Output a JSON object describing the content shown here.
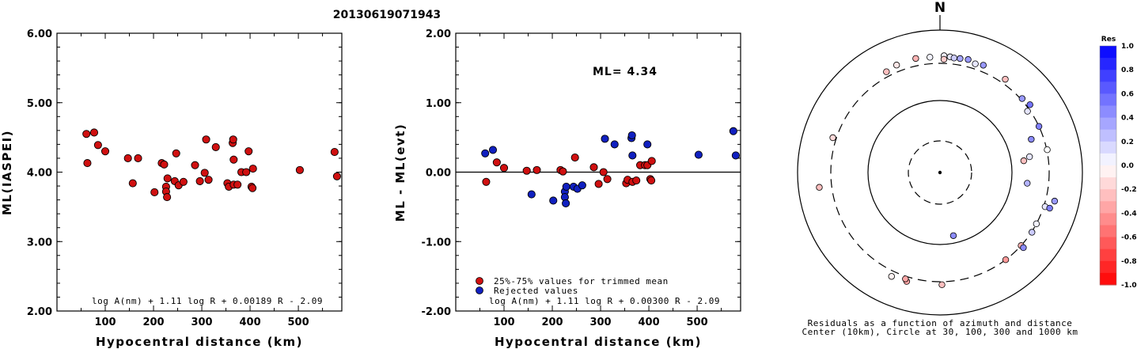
{
  "title": "20130619071943",
  "chart_data": [
    {
      "type": "scatter",
      "ylabel": "ML(IASPEI)",
      "xlabel": "Hypocentral distance (km)",
      "xlim": [
        0,
        590
      ],
      "ylim": [
        2.0,
        6.0
      ],
      "xticks": [
        100,
        200,
        300,
        400,
        500
      ],
      "yticks": [
        "2.00",
        "3.00",
        "4.00",
        "5.00",
        "6.00"
      ],
      "formula": "log A(nm) + 1.11 log R + 0.00189 R - 2.09",
      "marker_color": "#d01010",
      "points": [
        [
          61,
          4.55
        ],
        [
          63,
          4.13
        ],
        [
          77,
          4.57
        ],
        [
          85,
          4.39
        ],
        [
          100,
          4.3
        ],
        [
          147,
          4.2
        ],
        [
          157,
          3.84
        ],
        [
          168,
          4.2
        ],
        [
          202,
          3.71
        ],
        [
          217,
          4.13
        ],
        [
          222,
          4.11
        ],
        [
          226,
          3.79
        ],
        [
          226,
          3.72
        ],
        [
          228,
          3.64
        ],
        [
          229,
          3.91
        ],
        [
          244,
          3.87
        ],
        [
          247,
          4.27
        ],
        [
          252,
          3.81
        ],
        [
          262,
          3.86
        ],
        [
          286,
          4.1
        ],
        [
          296,
          3.87
        ],
        [
          306,
          3.99
        ],
        [
          309,
          4.47
        ],
        [
          314,
          3.89
        ],
        [
          329,
          4.36
        ],
        [
          353,
          3.84
        ],
        [
          356,
          3.79
        ],
        [
          364,
          4.42
        ],
        [
          365,
          4.47
        ],
        [
          366,
          4.18
        ],
        [
          366,
          3.82
        ],
        [
          374,
          3.82
        ],
        [
          382,
          4.0
        ],
        [
          392,
          4.0
        ],
        [
          397,
          4.3
        ],
        [
          403,
          3.79
        ],
        [
          405,
          3.77
        ],
        [
          406,
          4.05
        ],
        [
          503,
          4.03
        ],
        [
          575,
          4.29
        ],
        [
          580,
          3.94
        ]
      ]
    },
    {
      "type": "scatter",
      "ylabel": "ML - ML(evt)",
      "xlabel": "Hypocentral distance (km)",
      "xlim": [
        0,
        590
      ],
      "ylim": [
        -2.0,
        2.0
      ],
      "xticks": [
        100,
        200,
        300,
        400,
        500
      ],
      "yticks": [
        "-2.00",
        "-1.00",
        "0.00",
        "1.00",
        "2.00"
      ],
      "annotation": "ML= 4.34",
      "formula": "log A(nm) + 1.11 log R + 0.00300 R - 2.09",
      "legend": [
        {
          "label": "25%-75% values for trimmed mean",
          "color": "#d01010"
        },
        {
          "label": "Rejected values",
          "color": "#1020c0"
        }
      ],
      "series": [
        {
          "color": "#d01010",
          "points": [
            [
              63,
              -0.14
            ],
            [
              85,
              0.14
            ],
            [
              100,
              0.06
            ],
            [
              147,
              0.02
            ],
            [
              168,
              0.03
            ],
            [
              217,
              0.03
            ],
            [
              222,
              0.01
            ],
            [
              247,
              0.21
            ],
            [
              286,
              0.07
            ],
            [
              296,
              -0.17
            ],
            [
              306,
              0.0
            ],
            [
              314,
              -0.1
            ],
            [
              353,
              -0.16
            ],
            [
              356,
              -0.11
            ],
            [
              366,
              -0.14
            ],
            [
              374,
              -0.12
            ],
            [
              382,
              0.1
            ],
            [
              392,
              0.1
            ],
            [
              397,
              0.1
            ],
            [
              403,
              -0.1
            ],
            [
              405,
              -0.12
            ],
            [
              406,
              0.16
            ]
          ]
        },
        {
          "color": "#1020c0",
          "points": [
            [
              61,
              0.27
            ],
            [
              77,
              0.32
            ],
            [
              157,
              -0.32
            ],
            [
              202,
              -0.41
            ],
            [
              226,
              -0.28
            ],
            [
              226,
              -0.36
            ],
            [
              228,
              -0.45
            ],
            [
              229,
              -0.21
            ],
            [
              244,
              -0.21
            ],
            [
              252,
              -0.24
            ],
            [
              262,
              -0.19
            ],
            [
              309,
              0.48
            ],
            [
              329,
              0.4
            ],
            [
              364,
              0.49
            ],
            [
              365,
              0.53
            ],
            [
              366,
              0.24
            ],
            [
              397,
              0.4
            ],
            [
              503,
              0.25
            ],
            [
              575,
              0.59
            ],
            [
              580,
              0.24
            ]
          ]
        }
      ]
    },
    {
      "type": "scatter",
      "subtype": "polar",
      "north_label": "N",
      "caption_line1": "Residuals as a function of azimuth and distance",
      "caption_line2": "Center (10km), Circle at 30, 100, 300 and 1000 km",
      "colorbar_title": "Res",
      "colorbar_ticks": [
        "1.0",
        "0.8",
        "0.6",
        "0.4",
        "0.2",
        "0.0",
        "-0.2",
        "-0.4",
        "-0.6",
        "-0.8",
        "-1.0"
      ],
      "rings_km": [
        10,
        30,
        100,
        300,
        1000
      ],
      "stations": [
        {
          "az": 355,
          "dist": 380,
          "res": 0.05
        },
        {
          "az": 2,
          "dist": 395,
          "res": 0.05
        },
        {
          "az": 5,
          "dist": 385,
          "res": 0.1
        },
        {
          "az": 7,
          "dist": 375,
          "res": 0.2
        },
        {
          "az": 10,
          "dist": 380,
          "res": 0.35
        },
        {
          "az": 14,
          "dist": 390,
          "res": 0.4
        },
        {
          "az": 348,
          "dist": 392,
          "res": -0.3
        },
        {
          "az": 338,
          "dist": 382,
          "res": -0.1
        },
        {
          "az": 332,
          "dist": 358,
          "res": -0.25
        },
        {
          "az": 2,
          "dist": 348,
          "res": -0.2
        },
        {
          "az": 18,
          "dist": 360,
          "res": 0.1
        },
        {
          "az": 22,
          "dist": 380,
          "res": 0.4
        },
        {
          "az": 35,
          "dist": 355,
          "res": -0.25
        },
        {
          "az": 48,
          "dist": 315,
          "res": 0.4
        },
        {
          "az": 53,
          "dist": 340,
          "res": 0.55
        },
        {
          "az": 55,
          "dist": 280,
          "res": 0.1
        },
        {
          "az": 65,
          "dist": 300,
          "res": 0.5
        },
        {
          "az": 70,
          "dist": 210,
          "res": 0.45
        },
        {
          "az": 80,
          "dist": 175,
          "res": 0.1
        },
        {
          "az": 82,
          "dist": 145,
          "res": -0.25
        },
        {
          "az": 78,
          "dist": 305,
          "res": 0.0
        },
        {
          "az": 97,
          "dist": 160,
          "res": 0.3
        },
        {
          "az": 108,
          "dist": 315,
          "res": 0.1
        },
        {
          "az": 108,
          "dist": 375,
          "res": 0.5
        },
        {
          "az": 104,
          "dist": 415,
          "res": 0.4
        },
        {
          "az": 118,
          "dist": 300,
          "res": 0.05
        },
        {
          "az": 123,
          "dist": 305,
          "res": 0.2
        },
        {
          "az": 132,
          "dist": 300,
          "res": -0.3
        },
        {
          "az": 132,
          "dist": 335,
          "res": 0.45
        },
        {
          "az": 143,
          "dist": 300,
          "res": -0.4
        },
        {
          "az": 168,
          "dist": 80,
          "res": 0.45
        },
        {
          "az": 179,
          "dist": 335,
          "res": -0.25
        },
        {
          "az": 197,
          "dist": 355,
          "res": -0.35
        },
        {
          "az": 198,
          "dist": 330,
          "res": -0.35
        },
        {
          "az": 205,
          "dist": 365,
          "res": -0.05
        },
        {
          "az": 288,
          "dist": 340,
          "res": -0.15
        },
        {
          "az": 263,
          "dist": 470,
          "res": -0.25
        }
      ]
    }
  ]
}
